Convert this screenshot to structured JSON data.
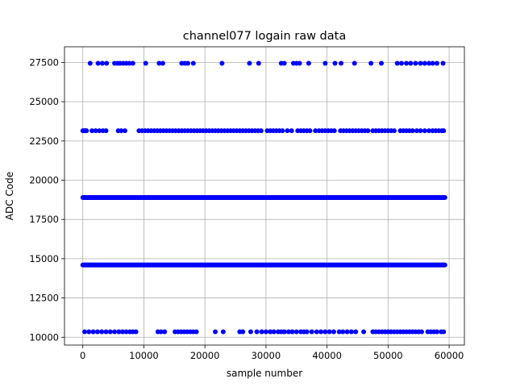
{
  "chart_data": {
    "type": "scatter",
    "title": "channel077 logain raw data",
    "xlabel": "sample number",
    "ylabel": "ADC Code",
    "xlim": [
      -3000,
      62500
    ],
    "ylim": [
      9500,
      28500
    ],
    "xticks": [
      0,
      10000,
      20000,
      30000,
      40000,
      50000,
      60000
    ],
    "xtick_labels": [
      "0",
      "10000",
      "20000",
      "30000",
      "40000",
      "50000",
      "60000"
    ],
    "yticks": [
      10000,
      12500,
      15000,
      17500,
      20000,
      22500,
      25000,
      27500
    ],
    "ytick_labels": [
      "10000",
      "12500",
      "15000",
      "17500",
      "20000",
      "22500",
      "25000",
      "27500"
    ],
    "grid": true,
    "marker_color": "#0000ff",
    "series": [
      {
        "values_note_level": 27450,
        "y": 27450,
        "x": [
          1200,
          2500,
          3200,
          3900,
          5200,
          5700,
          6100,
          6600,
          7100,
          7600,
          8200,
          10300,
          12500,
          13100,
          16200,
          16700,
          17200,
          18100,
          22800,
          27300,
          28800,
          32500,
          33000,
          34500,
          35000,
          35500,
          37000,
          39700,
          41300,
          42300,
          44500,
          47200,
          48900,
          51500,
          52200,
          53000,
          53700,
          54500,
          55300,
          56000,
          56700,
          57300,
          58000,
          59000
        ]
      },
      {
        "y": 23150,
        "x": [
          0,
          200,
          400,
          600,
          1500,
          2100,
          2700,
          3300,
          3800,
          5800,
          6300,
          6900,
          9200,
          9700,
          10200,
          10700,
          11200,
          11700,
          12200,
          12700,
          13200,
          13700,
          14200,
          14700,
          15200,
          15700,
          16200,
          16700,
          17200,
          17700,
          18200,
          18700,
          19200,
          19700,
          20200,
          20700,
          21200,
          21700,
          22200,
          22700,
          23200,
          23700,
          24200,
          24700,
          25200,
          25700,
          26200,
          26700,
          27200,
          27700,
          28200,
          28700,
          29200,
          30200,
          30700,
          31200,
          31700,
          32200,
          32700,
          33500,
          34200,
          35200,
          35700,
          36200,
          36700,
          37200,
          38100,
          38700,
          39200,
          39700,
          40200,
          40700,
          41200,
          42200,
          42700,
          43200,
          43700,
          44200,
          44700,
          45200,
          45700,
          46200,
          46700,
          47500,
          48000,
          48500,
          49000,
          49500,
          50000,
          50500,
          51000,
          52000,
          52500,
          53000,
          53500,
          54000,
          54700,
          55300,
          56000,
          56700,
          57300,
          57800,
          58300,
          58800,
          59100
        ]
      },
      {
        "y": 18900,
        "x_range": [
          0,
          59300
        ],
        "continuous": true
      },
      {
        "y": 14600,
        "x_range": [
          0,
          59300
        ],
        "continuous": true
      },
      {
        "y": 10350,
        "x": [
          300,
          1000,
          1700,
          2400,
          3100,
          3800,
          4500,
          5200,
          5900,
          6500,
          7100,
          7700,
          8200,
          8700,
          12300,
          12800,
          13400,
          15100,
          15600,
          16100,
          16600,
          17100,
          17600,
          18100,
          18600,
          21700,
          23000,
          25700,
          26200,
          27500,
          28500,
          29300,
          30000,
          30700,
          31300,
          32000,
          32500,
          33000,
          33700,
          34300,
          35000,
          35700,
          36200,
          36700,
          37500,
          38300,
          39000,
          39700,
          40400,
          41100,
          42000,
          42600,
          43300,
          44000,
          44700,
          46000,
          47500,
          48000,
          48500,
          49000,
          49500,
          50000,
          50500,
          51000,
          51500,
          52000,
          52500,
          53000,
          53500,
          54000,
          54500,
          55000,
          55500,
          56500,
          57000,
          57500,
          58000,
          58700,
          59100
        ]
      }
    ]
  }
}
